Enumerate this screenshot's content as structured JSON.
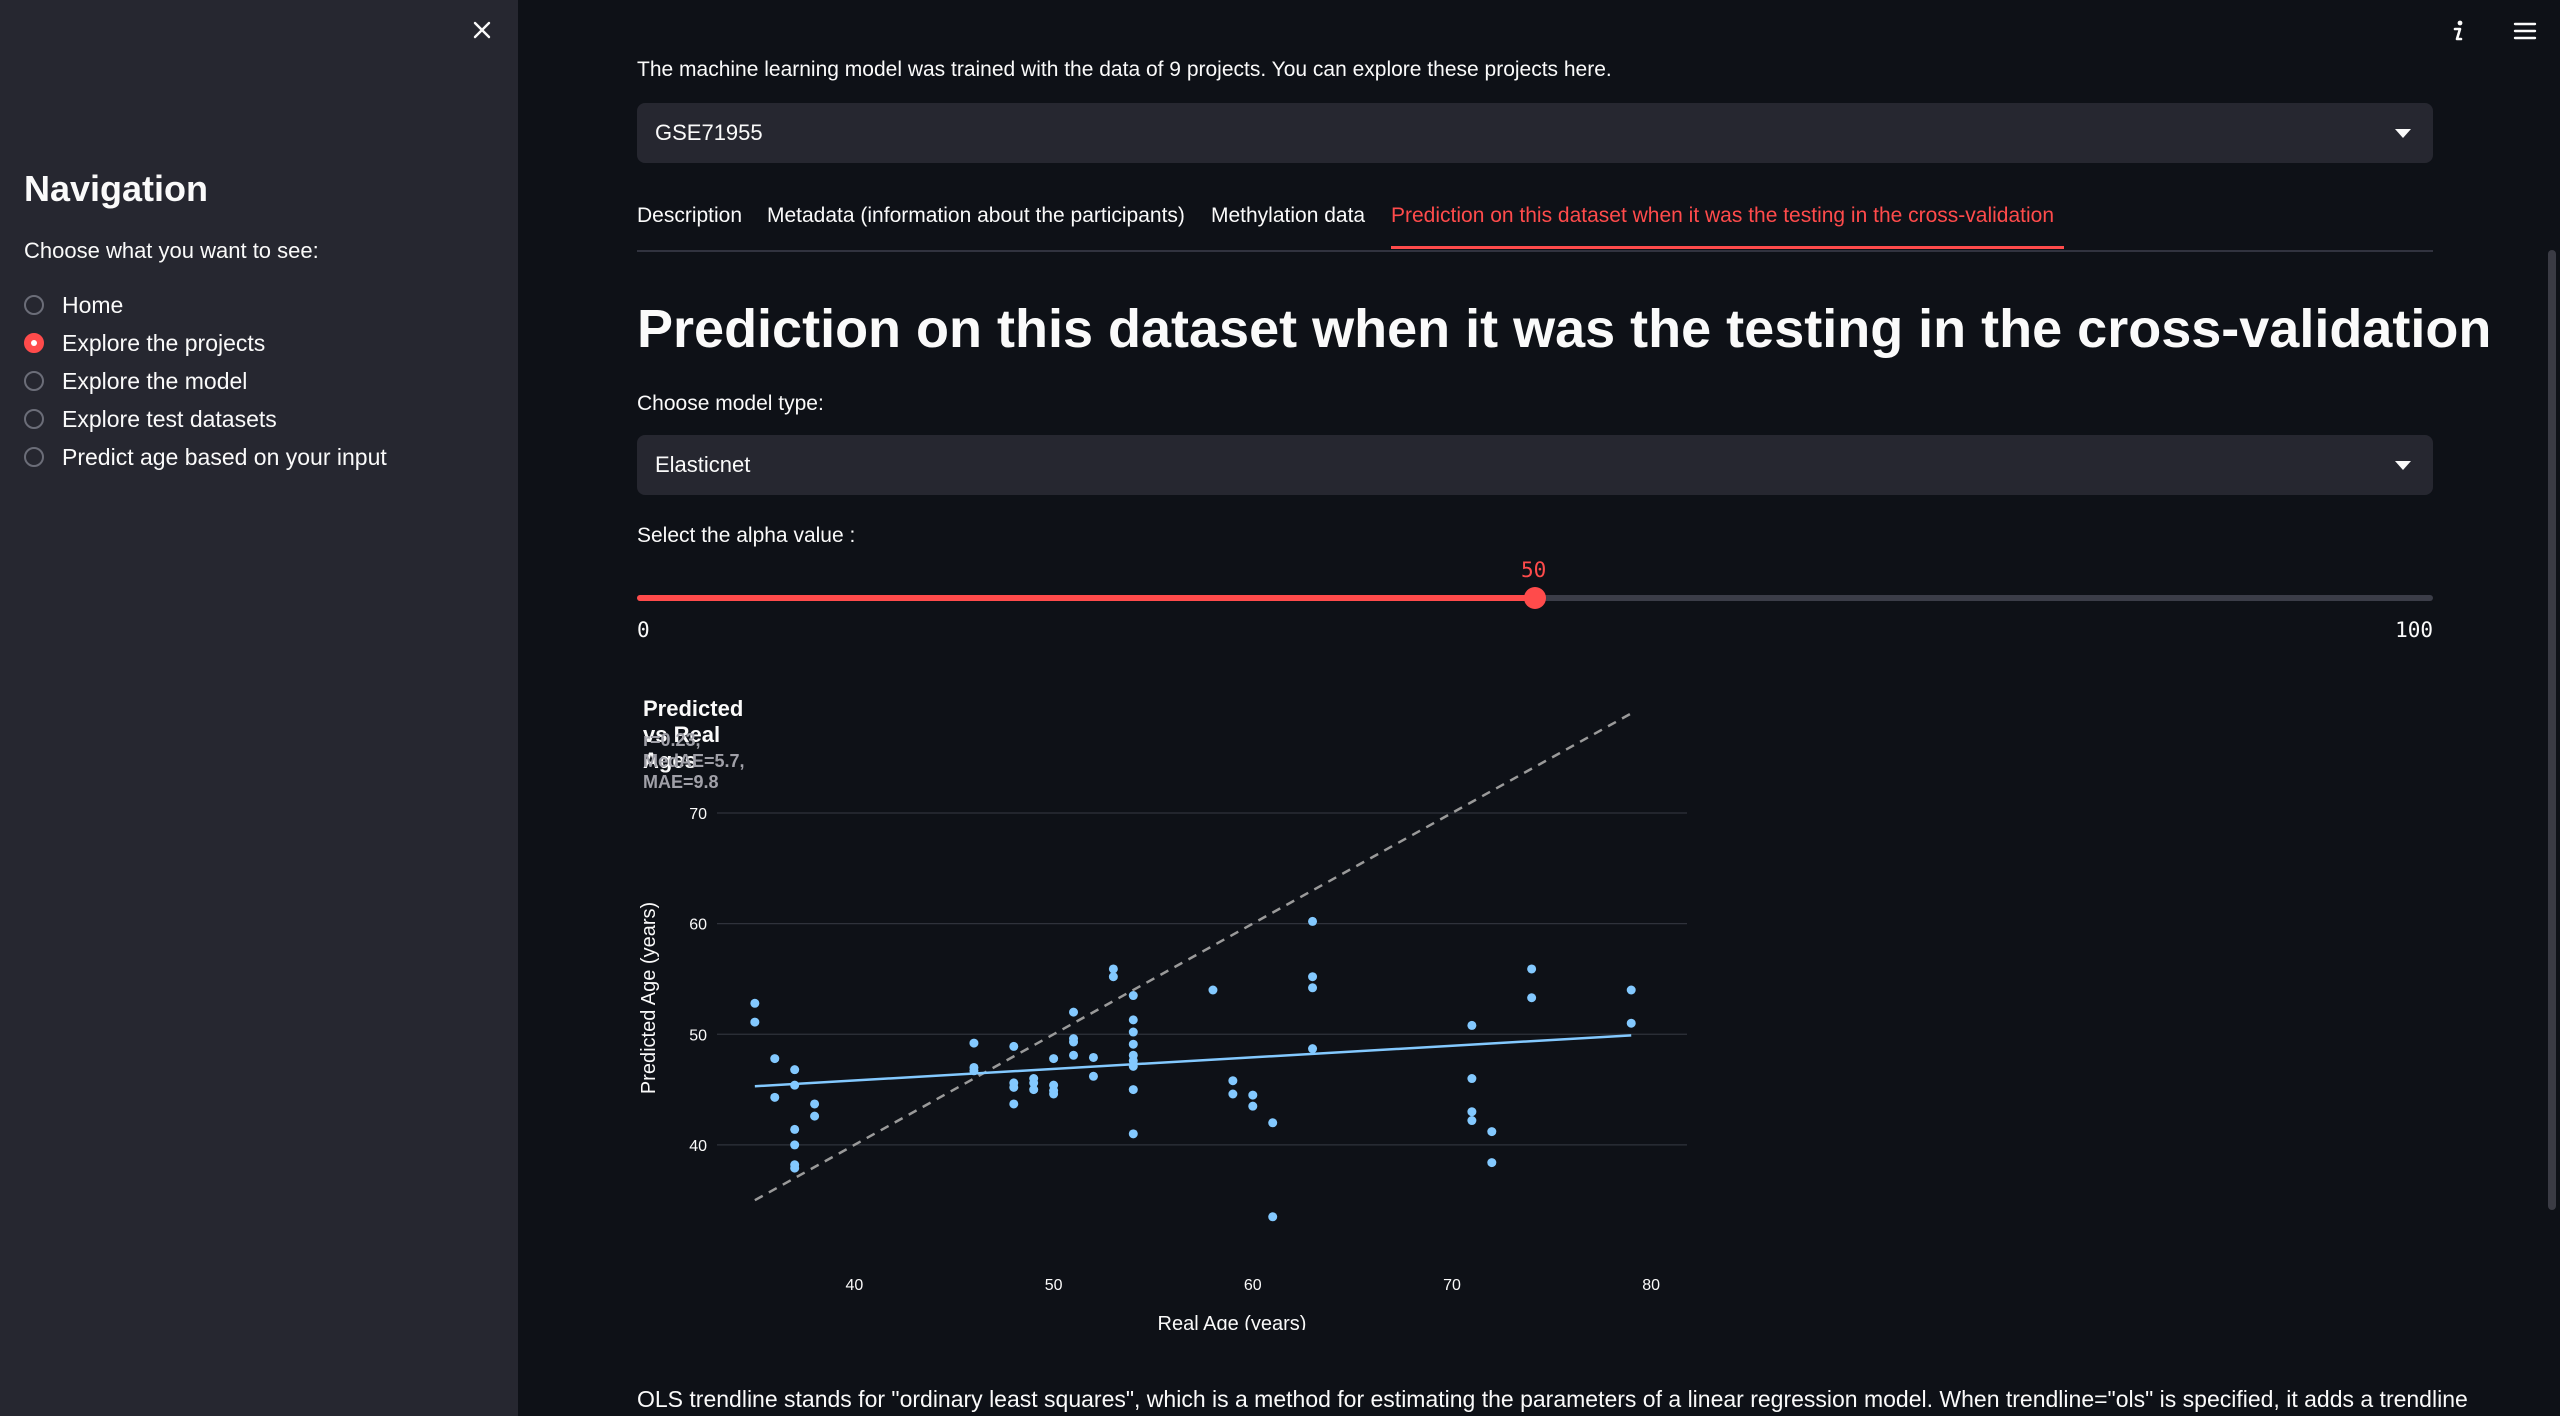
{
  "sidebar": {
    "title": "Navigation",
    "prompt": "Choose what you want to see:",
    "options": [
      "Home",
      "Explore the projects",
      "Explore the model",
      "Explore test datasets",
      "Predict age based on your input"
    ],
    "selected_index": 1
  },
  "main": {
    "intro": "The machine learning model was trained with the data of 9 projects. You can explore these projects here.",
    "project_select": "GSE71955",
    "tabs": [
      "Description",
      "Metadata (information about the participants)",
      "Methylation data",
      "Prediction on this dataset when it was the testing in the cross-validation"
    ],
    "active_tab": 3,
    "heading": "Prediction on this dataset when it was the testing in the cross-validation",
    "model_label": "Choose model type:",
    "model_select": "Elasticnet",
    "alpha_label": "Select the alpha value :",
    "slider": {
      "min": "0",
      "max": "100",
      "value": "50",
      "fraction": 0.5
    },
    "footer": "OLS trendline stands for \"ordinary least squares\", which is a method for estimating the parameters of a linear regression model. When trendline=\"ols\" is specified, it adds a trendline"
  },
  "colors": {
    "accent": "#ff4b4b",
    "points": "#83c9ff",
    "background": "#0e1117",
    "sidebar": "#262730"
  },
  "icons": {
    "close": "close-icon",
    "info": "info-icon",
    "menu": "hamburger-menu-icon",
    "caret": "chevron-down-icon"
  },
  "chart_data": {
    "type": "scatter",
    "title": "Predicted vs Real Ages",
    "subtitle": "r=0.23, MedAE=5.7, MAE=9.8",
    "xlabel": "Real Age (years)",
    "ylabel": "Predicted Age  (years)",
    "xticks": [
      40,
      50,
      60,
      70,
      80
    ],
    "yticks": [
      40,
      50,
      60,
      70
    ],
    "xlim": [
      33.1,
      81.8
    ],
    "ylim": [
      30.5,
      77.5
    ],
    "grid": true,
    "points": [
      [
        35,
        52.8
      ],
      [
        35,
        51.1
      ],
      [
        36,
        47.8
      ],
      [
        36,
        44.3
      ],
      [
        37,
        46.8
      ],
      [
        37,
        45.4
      ],
      [
        37,
        41.4
      ],
      [
        37,
        40
      ],
      [
        37,
        38.2
      ],
      [
        37,
        37.9
      ],
      [
        38,
        43.7
      ],
      [
        38,
        42.6
      ],
      [
        46,
        49.2
      ],
      [
        46,
        47
      ],
      [
        46,
        46.7
      ],
      [
        48,
        48.9
      ],
      [
        48,
        45.6
      ],
      [
        48,
        45.2
      ],
      [
        48,
        43.7
      ],
      [
        49,
        46
      ],
      [
        49,
        45.6
      ],
      [
        49,
        45
      ],
      [
        50,
        47.8
      ],
      [
        50,
        45.4
      ],
      [
        50,
        44.9
      ],
      [
        50,
        44.6
      ],
      [
        51,
        52
      ],
      [
        51,
        49.6
      ],
      [
        51,
        49.3
      ],
      [
        51,
        48.1
      ],
      [
        52,
        47.9
      ],
      [
        52,
        46.2
      ],
      [
        53,
        55.9
      ],
      [
        53,
        55.2
      ],
      [
        54,
        53.5
      ],
      [
        54,
        51.3
      ],
      [
        54,
        50.2
      ],
      [
        54,
        49.1
      ],
      [
        54,
        48.1
      ],
      [
        54,
        47.6
      ],
      [
        54,
        47.1
      ],
      [
        54,
        45
      ],
      [
        54,
        41
      ],
      [
        58,
        54
      ],
      [
        59,
        45.8
      ],
      [
        59,
        44.6
      ],
      [
        60,
        44.5
      ],
      [
        60,
        43.5
      ],
      [
        61,
        42
      ],
      [
        61,
        33.5
      ],
      [
        63,
        60.2
      ],
      [
        63,
        55.2
      ],
      [
        63,
        54.2
      ],
      [
        63,
        48.7
      ],
      [
        71,
        50.8
      ],
      [
        71,
        46
      ],
      [
        71,
        43
      ],
      [
        71,
        42.2
      ],
      [
        72,
        41.2
      ],
      [
        72,
        38.4
      ],
      [
        74,
        55.9
      ],
      [
        74,
        53.3
      ],
      [
        79,
        54
      ],
      [
        79,
        51
      ]
    ],
    "trendline": {
      "name": "ols",
      "x": [
        35,
        79
      ],
      "y": [
        45.3,
        49.9
      ]
    },
    "identity_line": {
      "x": [
        35,
        79
      ],
      "y": [
        35,
        79
      ]
    }
  }
}
